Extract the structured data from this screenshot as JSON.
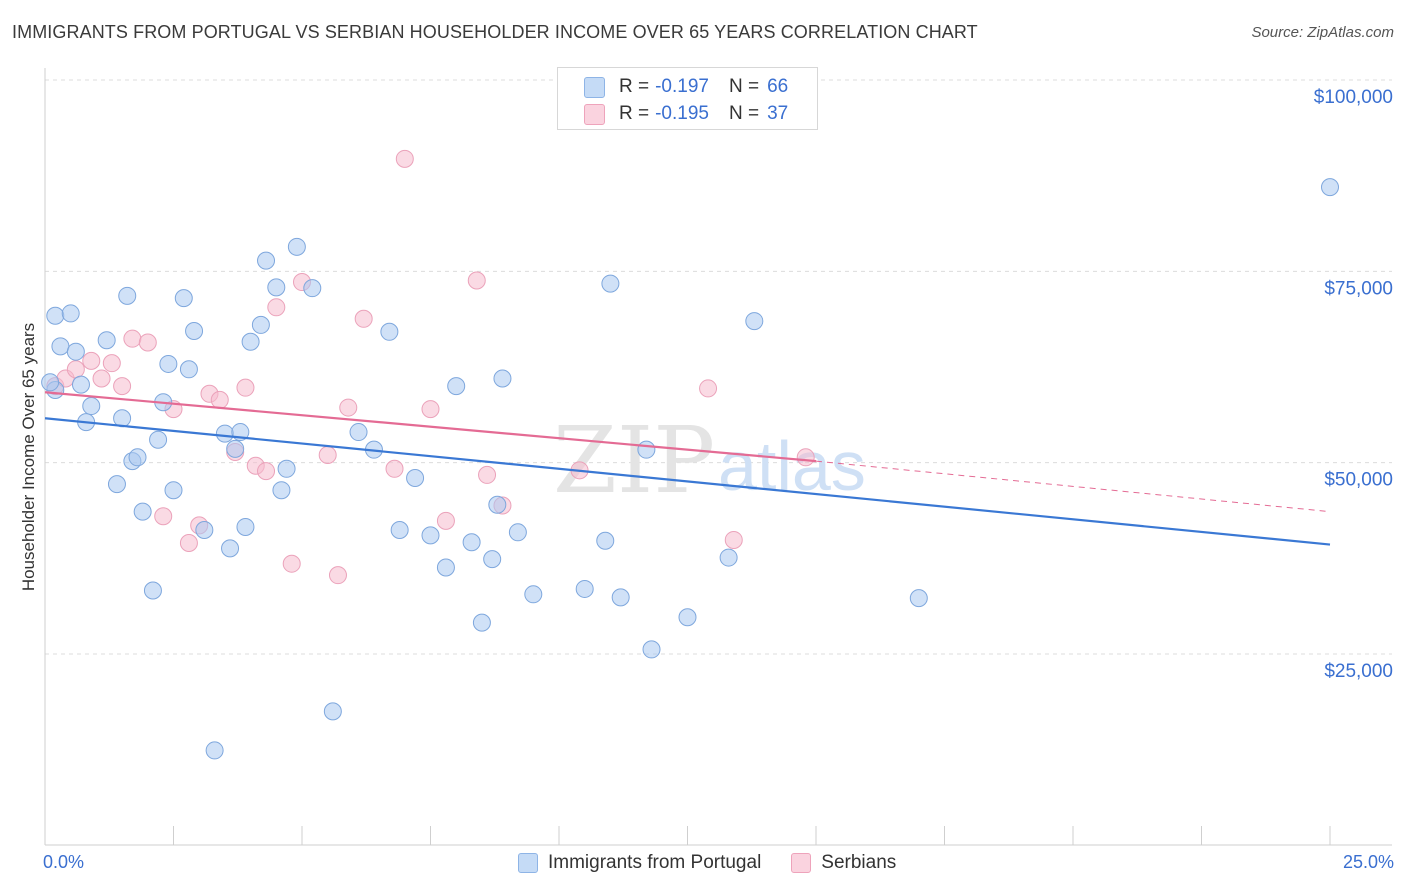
{
  "header": {
    "title": "IMMIGRANTS FROM PORTUGAL VS SERBIAN HOUSEHOLDER INCOME OVER 65 YEARS CORRELATION CHART",
    "source": "Source: ZipAtlas.com"
  },
  "watermark": {
    "zip": "ZIP",
    "atlas": "atlas"
  },
  "stats_legend": [
    {
      "r_label": "R =",
      "r_value": "-0.197",
      "n_label": "N =",
      "n_value": "66",
      "color": "#a9c8f0"
    },
    {
      "r_label": "R =",
      "r_value": "-0.195",
      "n_label": "N =",
      "n_value": "37",
      "color": "#f5bccd"
    }
  ],
  "x_axis": {
    "min_label": "0.0%",
    "max_label": "25.0%"
  },
  "colors": {
    "blue": "#3a78d4",
    "pink": "#e46b94",
    "blue_fill": "#a9c8f0",
    "pink_fill": "#f5bccd",
    "tick_text": "#3a6fd0"
  },
  "chart_data": {
    "type": "scatter",
    "title": "IMMIGRANTS FROM PORTUGAL VS SERBIAN HOUSEHOLDER INCOME OVER 65 YEARS CORRELATION CHART",
    "xlabel": "",
    "ylabel": "Householder Income Over 65 years",
    "xlim": [
      0,
      25
    ],
    "ylim": [
      0,
      104000
    ],
    "y_ticks": [
      {
        "value": 25000,
        "label": "$25,000"
      },
      {
        "value": 50000,
        "label": "$50,000"
      },
      {
        "value": 75000,
        "label": "$75,000"
      },
      {
        "value": 100000,
        "label": "$100,000"
      }
    ],
    "grid": true,
    "legend_position": "bottom",
    "series": [
      {
        "name": "Immigrants from Portugal",
        "color": "#3a78d4",
        "trend": {
          "x": [
            0,
            25
          ],
          "y": [
            55800,
            39300
          ]
        },
        "points": [
          [
            0.2,
            69200
          ],
          [
            0.3,
            65200
          ],
          [
            0.5,
            69500
          ],
          [
            0.6,
            64500
          ],
          [
            0.7,
            60200
          ],
          [
            0.8,
            55300
          ],
          [
            0.9,
            57400
          ],
          [
            1.2,
            66000
          ],
          [
            1.4,
            47200
          ],
          [
            1.5,
            55800
          ],
          [
            1.6,
            71800
          ],
          [
            1.7,
            50200
          ],
          [
            1.8,
            50700
          ],
          [
            1.9,
            43600
          ],
          [
            2.1,
            33300
          ],
          [
            2.2,
            53000
          ],
          [
            2.3,
            57900
          ],
          [
            2.4,
            62900
          ],
          [
            2.5,
            46400
          ],
          [
            2.7,
            71500
          ],
          [
            2.8,
            62200
          ],
          [
            2.9,
            67200
          ],
          [
            3.1,
            41200
          ],
          [
            3.3,
            12400
          ],
          [
            3.5,
            53800
          ],
          [
            3.6,
            38800
          ],
          [
            3.7,
            51800
          ],
          [
            3.8,
            54000
          ],
          [
            3.9,
            41600
          ],
          [
            4.0,
            65800
          ],
          [
            4.2,
            68000
          ],
          [
            4.3,
            76400
          ],
          [
            4.5,
            72900
          ],
          [
            4.6,
            46400
          ],
          [
            4.7,
            49200
          ],
          [
            4.9,
            78200
          ],
          [
            5.2,
            72800
          ],
          [
            5.6,
            17500
          ],
          [
            6.1,
            54000
          ],
          [
            6.4,
            51700
          ],
          [
            6.7,
            67100
          ],
          [
            6.9,
            41200
          ],
          [
            7.2,
            48000
          ],
          [
            7.5,
            40500
          ],
          [
            7.8,
            36300
          ],
          [
            8.0,
            60000
          ],
          [
            8.3,
            39600
          ],
          [
            8.5,
            29100
          ],
          [
            8.7,
            37400
          ],
          [
            8.8,
            44500
          ],
          [
            8.9,
            61000
          ],
          [
            9.2,
            40900
          ],
          [
            9.5,
            32800
          ],
          [
            10.5,
            33500
          ],
          [
            10.9,
            39800
          ],
          [
            11.0,
            73400
          ],
          [
            11.2,
            32400
          ],
          [
            11.7,
            51700
          ],
          [
            11.8,
            25600
          ],
          [
            12.5,
            29800
          ],
          [
            13.3,
            37600
          ],
          [
            13.8,
            68500
          ],
          [
            17.0,
            32300
          ],
          [
            25.0,
            86000
          ],
          [
            0.2,
            59500
          ],
          [
            0.1,
            60500
          ]
        ]
      },
      {
        "name": "Serbians",
        "color": "#e46b94",
        "trend": {
          "x": [
            0,
            15
          ],
          "y": [
            59200,
            50200
          ]
        },
        "trend_dashed": {
          "x": [
            15,
            25
          ],
          "y": [
            50200,
            43600
          ]
        },
        "points": [
          [
            0.2,
            60000
          ],
          [
            0.4,
            61000
          ],
          [
            0.6,
            62200
          ],
          [
            0.9,
            63300
          ],
          [
            1.1,
            61000
          ],
          [
            1.3,
            63000
          ],
          [
            1.5,
            60000
          ],
          [
            1.7,
            66200
          ],
          [
            2.0,
            65700
          ],
          [
            2.3,
            43000
          ],
          [
            2.5,
            57000
          ],
          [
            2.8,
            39500
          ],
          [
            3.0,
            41800
          ],
          [
            3.2,
            59000
          ],
          [
            3.4,
            58200
          ],
          [
            3.7,
            51400
          ],
          [
            3.9,
            59800
          ],
          [
            4.1,
            49600
          ],
          [
            4.3,
            48900
          ],
          [
            4.5,
            70300
          ],
          [
            4.8,
            36800
          ],
          [
            5.0,
            73600
          ],
          [
            5.5,
            51000
          ],
          [
            5.7,
            35300
          ],
          [
            5.9,
            57200
          ],
          [
            6.2,
            68800
          ],
          [
            6.8,
            49200
          ],
          [
            7.0,
            89700
          ],
          [
            7.5,
            57000
          ],
          [
            7.8,
            42400
          ],
          [
            8.4,
            73800
          ],
          [
            8.6,
            48400
          ],
          [
            8.9,
            44400
          ],
          [
            10.4,
            49000
          ],
          [
            12.9,
            59700
          ],
          [
            13.4,
            39900
          ],
          [
            14.8,
            50700
          ]
        ]
      }
    ]
  }
}
